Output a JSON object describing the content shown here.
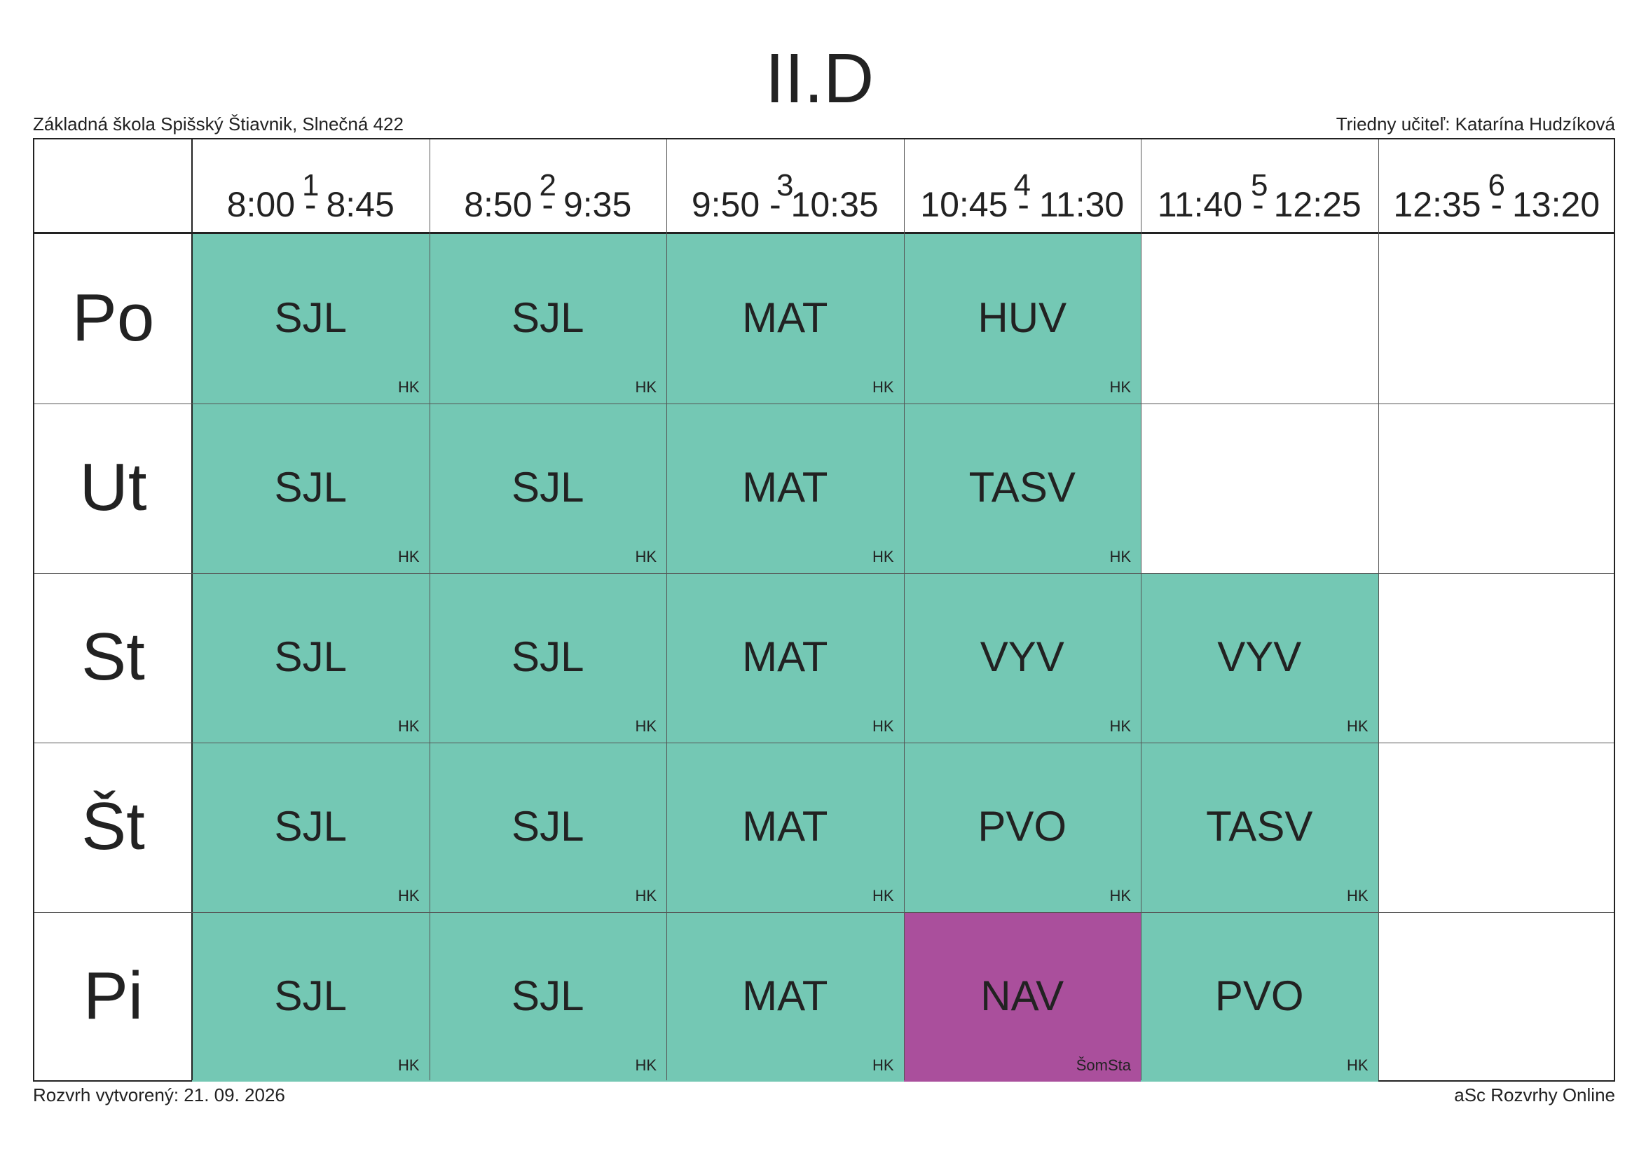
{
  "header": {
    "class_name": "II.D",
    "school": "Základná škola Spišský Štiavnik, Slnečná 422",
    "class_teacher": "Triedny učiteľ: Katarína Hudzíková"
  },
  "periods": [
    {
      "num": "1",
      "time": "8:00 - 8:45"
    },
    {
      "num": "2",
      "time": "8:50 - 9:35"
    },
    {
      "num": "3",
      "time": "9:50 - 10:35"
    },
    {
      "num": "4",
      "time": "10:45 - 11:30"
    },
    {
      "num": "5",
      "time": "11:40 - 12:25"
    },
    {
      "num": "6",
      "time": "12:35 - 13:20"
    }
  ],
  "days": [
    "Po",
    "Ut",
    "St",
    "Št",
    "Pi"
  ],
  "colors": {
    "standard": "#74c8b4",
    "special": "#aa4f9c"
  },
  "timetable": [
    [
      {
        "subject": "SJL",
        "teacher": "HK"
      },
      {
        "subject": "SJL",
        "teacher": "HK"
      },
      {
        "subject": "MAT",
        "teacher": "HK"
      },
      {
        "subject": "HUV",
        "teacher": "HK"
      },
      null,
      null
    ],
    [
      {
        "subject": "SJL",
        "teacher": "HK"
      },
      {
        "subject": "SJL",
        "teacher": "HK"
      },
      {
        "subject": "MAT",
        "teacher": "HK"
      },
      {
        "subject": "TASV",
        "teacher": "HK"
      },
      null,
      null
    ],
    [
      {
        "subject": "SJL",
        "teacher": "HK"
      },
      {
        "subject": "SJL",
        "teacher": "HK"
      },
      {
        "subject": "MAT",
        "teacher": "HK"
      },
      {
        "subject": "VYV",
        "teacher": "HK"
      },
      {
        "subject": "VYV",
        "teacher": "HK"
      },
      null
    ],
    [
      {
        "subject": "SJL",
        "teacher": "HK"
      },
      {
        "subject": "SJL",
        "teacher": "HK"
      },
      {
        "subject": "MAT",
        "teacher": "HK"
      },
      {
        "subject": "PVO",
        "teacher": "HK"
      },
      {
        "subject": "TASV",
        "teacher": "HK"
      },
      null
    ],
    [
      {
        "subject": "SJL",
        "teacher": "HK"
      },
      {
        "subject": "SJL",
        "teacher": "HK"
      },
      {
        "subject": "MAT",
        "teacher": "HK"
      },
      {
        "subject": "NAV",
        "teacher": "ŠomSta",
        "color": "special"
      },
      {
        "subject": "PVO",
        "teacher": "HK"
      },
      null
    ]
  ],
  "footer": {
    "created": "Rozvrh vytvorený: 21. 09. 2026",
    "brand": "aSc Rozvrhy Online"
  }
}
